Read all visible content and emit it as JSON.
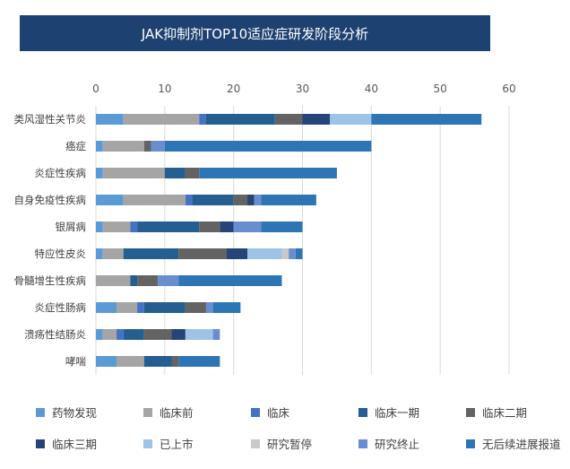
{
  "chart_data": {
    "type": "bar",
    "orientation": "horizontal",
    "stacked": true,
    "title": "JAK抑制剂TOP10适应症研发阶段分析",
    "xlim": [
      0,
      60
    ],
    "xticks": [
      0,
      10,
      20,
      30,
      40,
      50,
      60
    ],
    "grid": true,
    "legend_position": "bottom",
    "categories": [
      "类风湿性关节炎",
      "癌症",
      "炎症性疾病",
      "自身免疫性疾病",
      "银屑病",
      "特应性皮炎",
      "骨髓增生性疾病",
      "炎症性肠病",
      "溃疡性结肠炎",
      "哮喘"
    ],
    "series": [
      {
        "name": "药物发现",
        "color": "#5b9bd5",
        "values": [
          4,
          1,
          1,
          4,
          1,
          1,
          0,
          3,
          1,
          3
        ]
      },
      {
        "name": "临床前",
        "color": "#a5a5a5",
        "values": [
          11,
          6,
          9,
          9,
          4,
          3,
          5,
          3,
          2,
          4
        ]
      },
      {
        "name": "临床",
        "color": "#4472c4",
        "values": [
          1,
          0,
          0,
          1,
          1,
          0,
          0,
          1,
          1,
          0
        ]
      },
      {
        "name": "临床一期",
        "color": "#255e91",
        "values": [
          10,
          0,
          3,
          6,
          9,
          8,
          1,
          6,
          3,
          4
        ]
      },
      {
        "name": "临床二期",
        "color": "#636363",
        "values": [
          4,
          1,
          2,
          2,
          3,
          7,
          3,
          3,
          4,
          1
        ]
      },
      {
        "name": "临床三期",
        "color": "#264478",
        "values": [
          4,
          0,
          0,
          1,
          2,
          3,
          0,
          0,
          2,
          0
        ]
      },
      {
        "name": "已上市",
        "color": "#9dc3e6",
        "values": [
          6,
          0,
          0,
          0,
          0,
          5,
          0,
          0,
          4,
          0
        ]
      },
      {
        "name": "研究暂停",
        "color": "#c9c9c9",
        "values": [
          0,
          0,
          0,
          0,
          0,
          1,
          0,
          0,
          0,
          0
        ]
      },
      {
        "name": "研究终止",
        "color": "#698ed0",
        "values": [
          0,
          2,
          0,
          1,
          4,
          1,
          3,
          1,
          1,
          0
        ]
      },
      {
        "name": "无后续进展报道",
        "color": "#2e75b6",
        "values": [
          16,
          30,
          20,
          8,
          6,
          1,
          15,
          4,
          0,
          6
        ]
      }
    ]
  }
}
